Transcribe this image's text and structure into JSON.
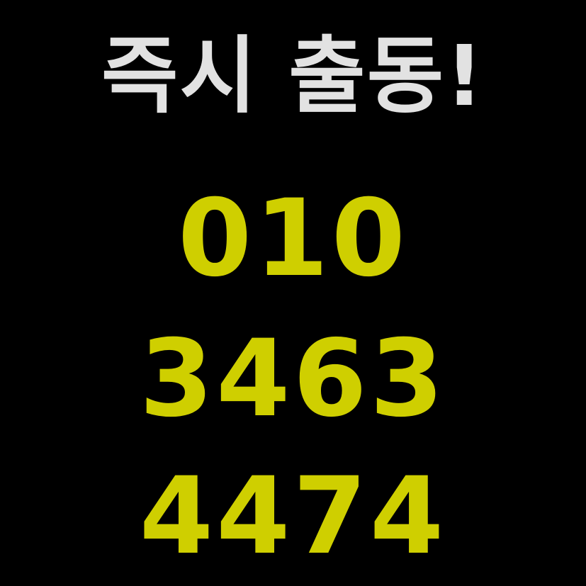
{
  "headline": "즉시 출동!",
  "phone": {
    "part1": "010",
    "part2": "3463",
    "part3": "4474"
  },
  "colors": {
    "background": "#000000",
    "headline": "#e2e2e2",
    "phone": "#cfcf00"
  }
}
